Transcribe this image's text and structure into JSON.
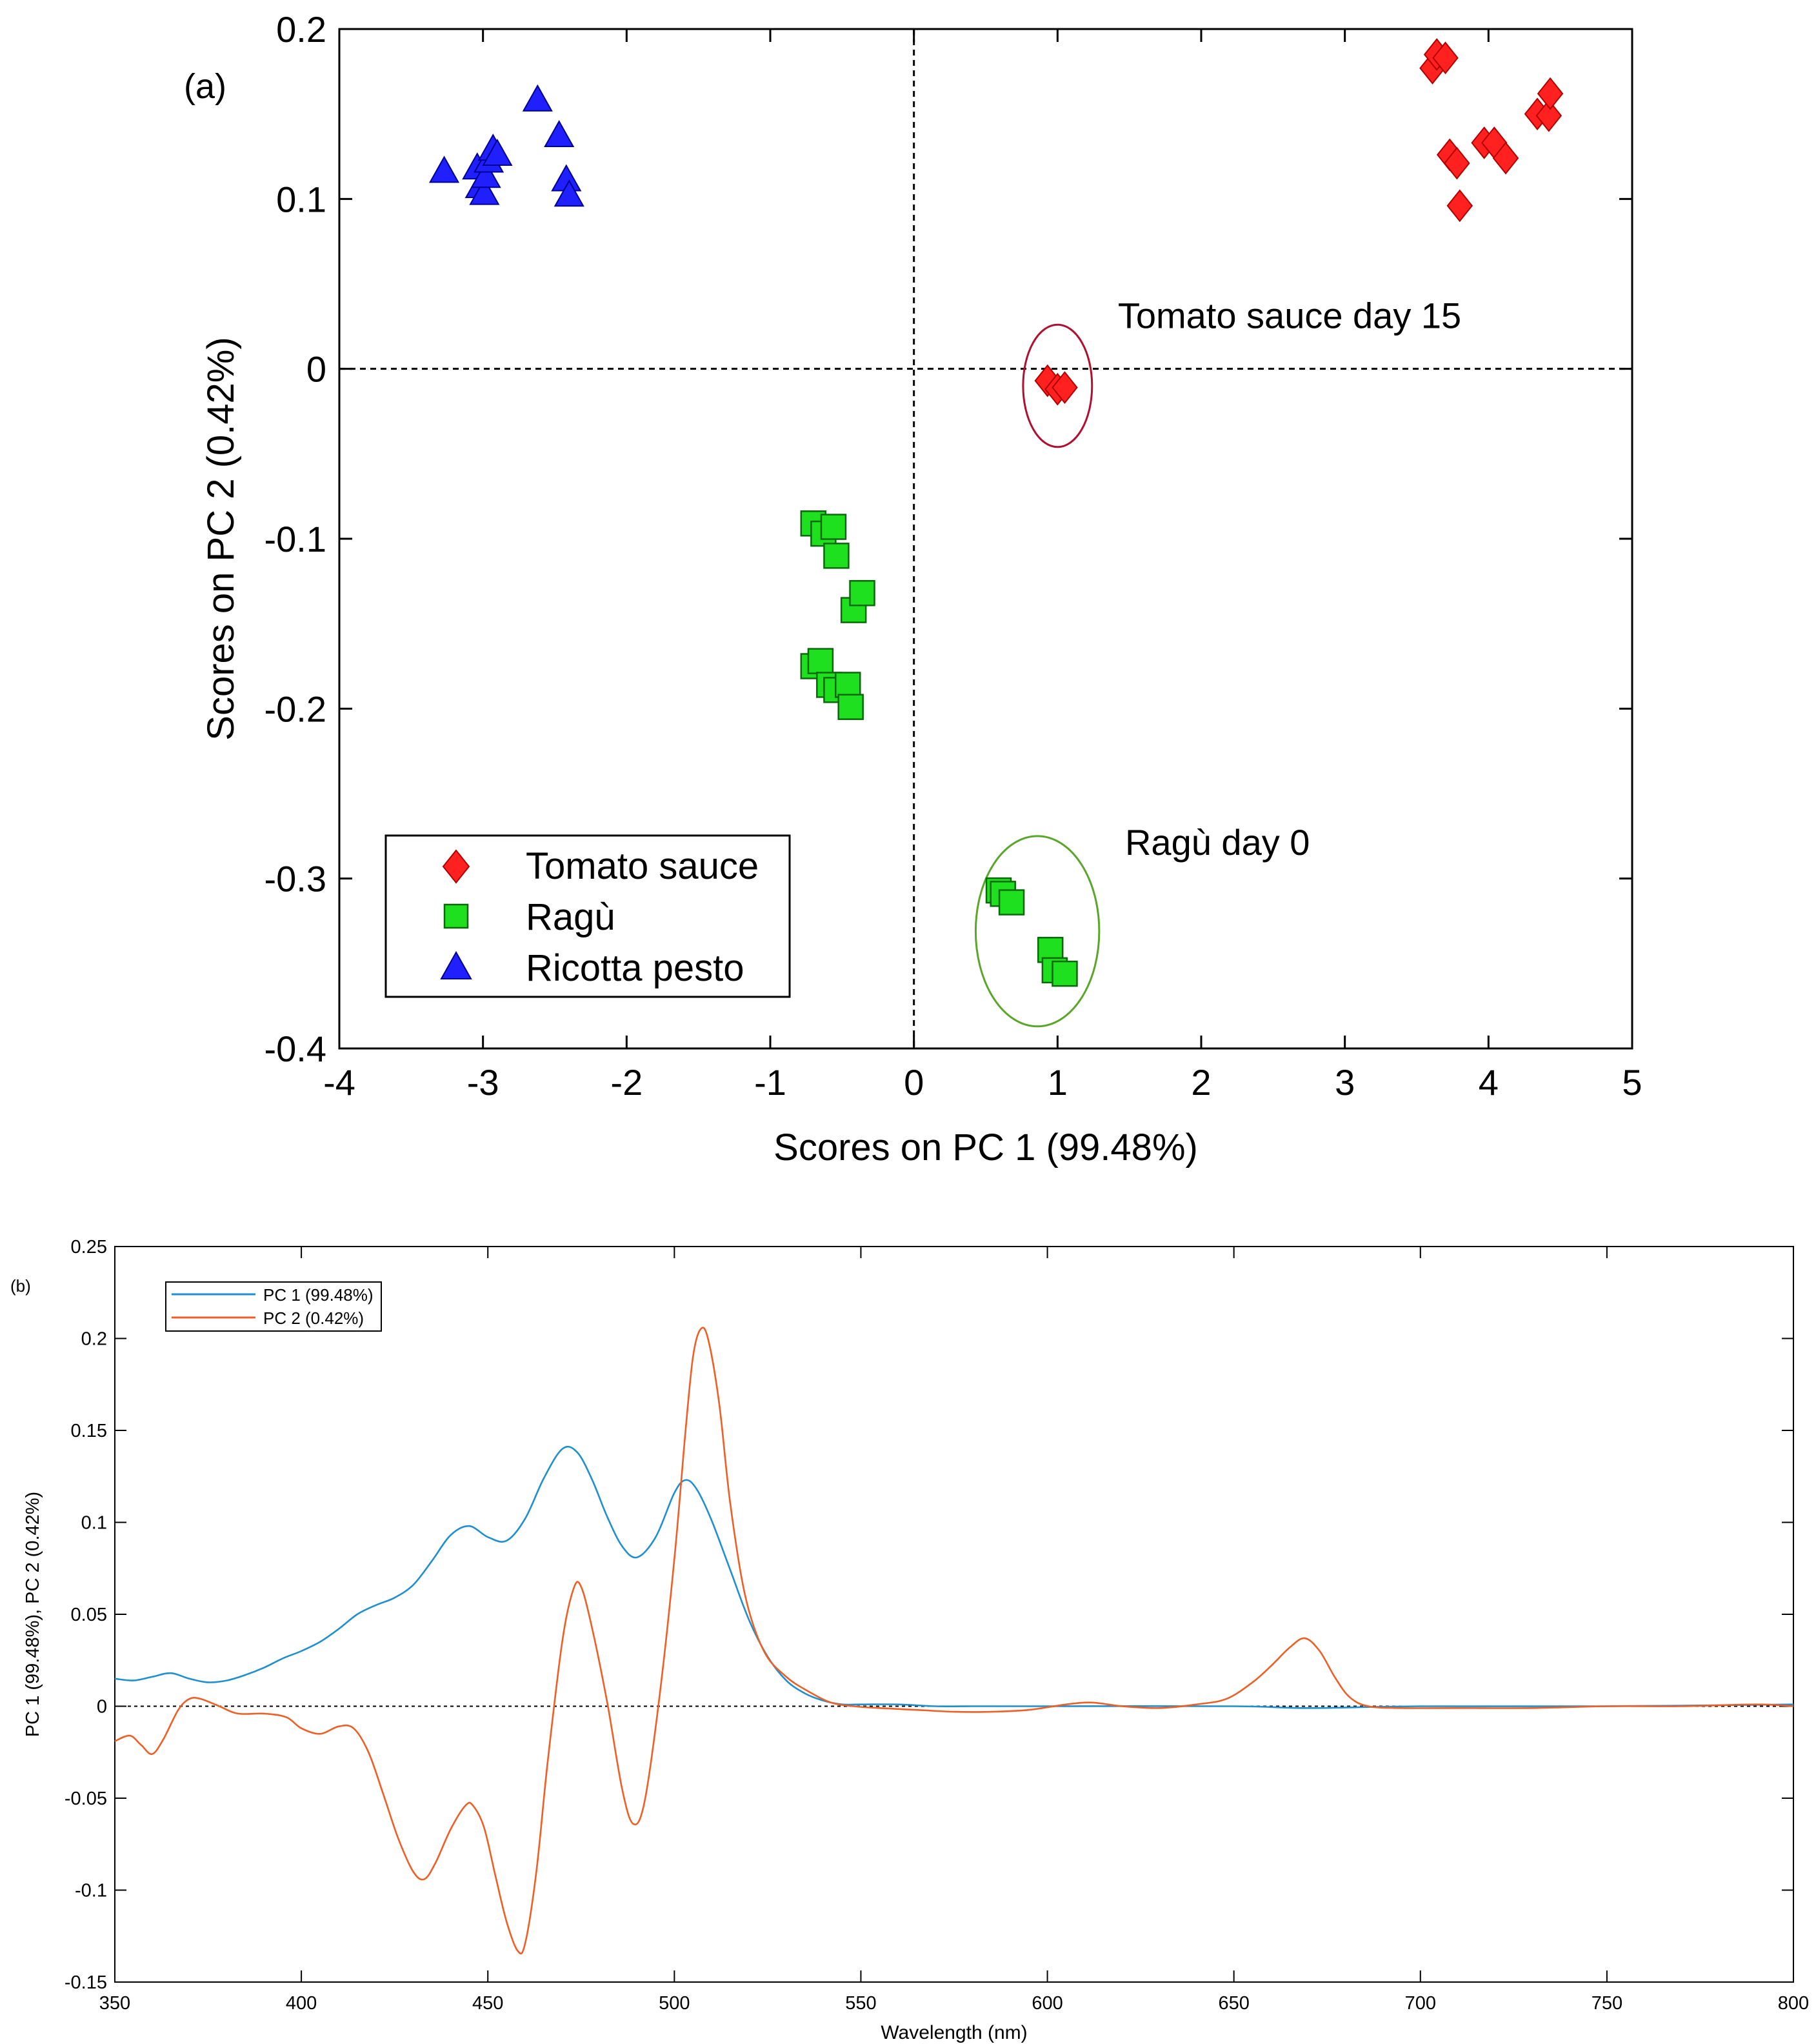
{
  "colors": {
    "tomato": "#ff2020",
    "ragu": "#1ee01e",
    "ricotta": "#2020ff",
    "pc1": "#1f8fd0",
    "pc2": "#ee5f25",
    "ellipse_tomato": "#b01030",
    "ellipse_ragu": "#5aa62a"
  },
  "chart_data": [
    {
      "type": "scatter",
      "panel_label": "(a)",
      "xlabel": "Scores on PC 1 (99.48%)",
      "ylabel": "Scores on PC 2 (0.42%)",
      "xlim": [
        -4,
        5
      ],
      "ylim": [
        -0.4,
        0.2
      ],
      "xticks": [
        -4,
        -3,
        -2,
        -1,
        0,
        1,
        2,
        3,
        4,
        5
      ],
      "yticks": [
        -0.4,
        -0.3,
        -0.2,
        -0.1,
        0,
        0.1,
        0.2
      ],
      "xtick_labels": [
        "-4",
        "-3",
        "-2",
        "-1",
        "0",
        "1",
        "2",
        "3",
        "4",
        "5"
      ],
      "ytick_labels": [
        "-0.4",
        "-0.3",
        "-0.2",
        "-0.1",
        "0",
        "0.1",
        "0.2"
      ],
      "reference_lines": {
        "x": 0,
        "y": 0,
        "style": "dashed"
      },
      "legend": {
        "placement": "bottom-left",
        "entries": [
          "Tomato sauce",
          "Ragù",
          "Ricotta pesto"
        ]
      },
      "series": [
        {
          "name": "Tomato sauce",
          "marker": "diamond",
          "color": "#ff2020",
          "points": [
            [
              3.61,
              0.177
            ],
            [
              3.64,
              0.185
            ],
            [
              3.7,
              0.183
            ],
            [
              3.73,
              0.126
            ],
            [
              3.78,
              0.121
            ],
            [
              3.8,
              0.096
            ],
            [
              3.97,
              0.133
            ],
            [
              4.04,
              0.133
            ],
            [
              4.12,
              0.124
            ],
            [
              4.34,
              0.15
            ],
            [
              4.42,
              0.149
            ],
            [
              4.43,
              0.162
            ],
            [
              0.93,
              -0.007
            ],
            [
              1.0,
              -0.012
            ],
            [
              1.05,
              -0.011
            ]
          ]
        },
        {
          "name": "Ragù",
          "marker": "square",
          "color": "#1ee01e",
          "points": [
            [
              -0.7,
              -0.091
            ],
            [
              -0.63,
              -0.097
            ],
            [
              -0.56,
              -0.093
            ],
            [
              -0.54,
              -0.11
            ],
            [
              -0.42,
              -0.142
            ],
            [
              -0.36,
              -0.132
            ],
            [
              -0.7,
              -0.175
            ],
            [
              -0.65,
              -0.172
            ],
            [
              -0.59,
              -0.186
            ],
            [
              -0.54,
              -0.189
            ],
            [
              -0.46,
              -0.186
            ],
            [
              -0.44,
              -0.199
            ],
            [
              0.59,
              -0.307
            ],
            [
              0.62,
              -0.309
            ],
            [
              0.68,
              -0.314
            ],
            [
              0.95,
              -0.342
            ],
            [
              0.98,
              -0.354
            ],
            [
              1.05,
              -0.356
            ]
          ]
        },
        {
          "name": "Ricotta pesto",
          "marker": "triangle",
          "color": "#2020ff",
          "points": [
            [
              -3.27,
              0.116
            ],
            [
              -3.04,
              0.118
            ],
            [
              -3.02,
              0.107
            ],
            [
              -2.99,
              0.103
            ],
            [
              -2.98,
              0.113
            ],
            [
              -2.96,
              0.122
            ],
            [
              -2.93,
              0.129
            ],
            [
              -2.9,
              0.126
            ],
            [
              -2.62,
              0.158
            ],
            [
              -2.47,
              0.137
            ],
            [
              -2.42,
              0.111
            ],
            [
              -2.4,
              0.102
            ]
          ]
        }
      ],
      "annotations": [
        {
          "text": "Tomato sauce day 15",
          "x": 1.42,
          "y": 0.024
        },
        {
          "text": "Ragù day 0",
          "x": 1.47,
          "y": -0.286
        }
      ],
      "ellipses": [
        {
          "center": [
            1.0,
            -0.01
          ],
          "radii": [
            0.24,
            0.036
          ],
          "color": "#b01030"
        },
        {
          "center": [
            0.86,
            -0.331
          ],
          "radii": [
            0.43,
            0.056
          ],
          "color": "#5aa62a"
        }
      ]
    },
    {
      "type": "line",
      "panel_label": "(b)",
      "xlabel": "Wavelength (nm)",
      "ylabel": "PC 1 (99.48%), PC 2 (0.42%)",
      "xlim": [
        350,
        800
      ],
      "ylim": [
        -0.15,
        0.25
      ],
      "xticks": [
        350,
        400,
        450,
        500,
        550,
        600,
        650,
        700,
        750,
        800
      ],
      "yticks": [
        -0.15,
        -0.1,
        -0.05,
        0,
        0.05,
        0.1,
        0.15,
        0.2,
        0.25
      ],
      "xtick_labels": [
        "350",
        "400",
        "450",
        "500",
        "550",
        "600",
        "650",
        "700",
        "750",
        "800"
      ],
      "ytick_labels": [
        "-0.15",
        "-0.1",
        "-0.05",
        "0",
        "0.05",
        "0.1",
        "0.15",
        "0.2",
        "0.25"
      ],
      "reference_lines": {
        "y": 0,
        "style": "dotted"
      },
      "legend": {
        "placement": "top-left",
        "entries": [
          "PC 1 (99.48%)",
          "PC 2 (0.42%)"
        ]
      },
      "series": [
        {
          "name": "PC 1 (99.48%)",
          "color": "#1f8fd0",
          "points": [
            [
              350,
              0.015
            ],
            [
              355,
              0.014
            ],
            [
              360,
              0.016
            ],
            [
              365,
              0.018
            ],
            [
              370,
              0.015
            ],
            [
              375,
              0.013
            ],
            [
              380,
              0.014
            ],
            [
              385,
              0.017
            ],
            [
              390,
              0.021
            ],
            [
              395,
              0.026
            ],
            [
              400,
              0.03
            ],
            [
              405,
              0.035
            ],
            [
              410,
              0.042
            ],
            [
              415,
              0.05
            ],
            [
              420,
              0.055
            ],
            [
              425,
              0.059
            ],
            [
              430,
              0.066
            ],
            [
              435,
              0.079
            ],
            [
              440,
              0.093
            ],
            [
              445,
              0.098
            ],
            [
              450,
              0.092
            ],
            [
              455,
              0.09
            ],
            [
              460,
              0.102
            ],
            [
              465,
              0.124
            ],
            [
              470,
              0.14
            ],
            [
              474,
              0.138
            ],
            [
              478,
              0.123
            ],
            [
              482,
              0.103
            ],
            [
              486,
              0.087
            ],
            [
              490,
              0.081
            ],
            [
              495,
              0.092
            ],
            [
              500,
              0.116
            ],
            [
              503,
              0.123
            ],
            [
              506,
              0.118
            ],
            [
              510,
              0.101
            ],
            [
              515,
              0.074
            ],
            [
              520,
              0.047
            ],
            [
              525,
              0.027
            ],
            [
              530,
              0.014
            ],
            [
              535,
              0.007
            ],
            [
              540,
              0.003
            ],
            [
              545,
              0.001
            ],
            [
              550,
              0.001
            ],
            [
              560,
              0.001
            ],
            [
              570,
              0.0
            ],
            [
              580,
              0.0
            ],
            [
              590,
              0.0
            ],
            [
              600,
              0.0
            ],
            [
              650,
              0.0
            ],
            [
              670,
              -0.001
            ],
            [
              700,
              0.0
            ],
            [
              750,
              0.0
            ],
            [
              800,
              0.001
            ]
          ]
        },
        {
          "name": "PC 2 (0.42%)",
          "color": "#ee5f25",
          "points": [
            [
              350,
              -0.019
            ],
            [
              354,
              -0.016
            ],
            [
              357,
              -0.021
            ],
            [
              360,
              -0.026
            ],
            [
              363,
              -0.018
            ],
            [
              367,
              -0.002
            ],
            [
              370,
              0.004
            ],
            [
              373,
              0.004
            ],
            [
              378,
              0.0
            ],
            [
              383,
              -0.004
            ],
            [
              390,
              -0.004
            ],
            [
              396,
              -0.006
            ],
            [
              400,
              -0.012
            ],
            [
              405,
              -0.015
            ],
            [
              410,
              -0.011
            ],
            [
              414,
              -0.012
            ],
            [
              418,
              -0.025
            ],
            [
              422,
              -0.048
            ],
            [
              426,
              -0.072
            ],
            [
              430,
              -0.09
            ],
            [
              433,
              -0.094
            ],
            [
              436,
              -0.085
            ],
            [
              440,
              -0.067
            ],
            [
              444,
              -0.054
            ],
            [
              446,
              -0.054
            ],
            [
              449,
              -0.066
            ],
            [
              452,
              -0.092
            ],
            [
              455,
              -0.117
            ],
            [
              458,
              -0.133
            ],
            [
              460,
              -0.129
            ],
            [
              463,
              -0.09
            ],
            [
              466,
              -0.031
            ],
            [
              470,
              0.036
            ],
            [
              473,
              0.064
            ],
            [
              475,
              0.065
            ],
            [
              478,
              0.042
            ],
            [
              482,
              0.002
            ],
            [
              486,
              -0.045
            ],
            [
              489,
              -0.064
            ],
            [
              492,
              -0.052
            ],
            [
              496,
              0.005
            ],
            [
              500,
              0.08
            ],
            [
              503,
              0.15
            ],
            [
              505,
              0.19
            ],
            [
              507,
              0.205
            ],
            [
              509,
              0.2
            ],
            [
              512,
              0.165
            ],
            [
              515,
              0.11
            ],
            [
              519,
              0.06
            ],
            [
              524,
              0.03
            ],
            [
              530,
              0.016
            ],
            [
              536,
              0.008
            ],
            [
              542,
              0.002
            ],
            [
              548,
              0.0
            ],
            [
              555,
              -0.001
            ],
            [
              565,
              -0.002
            ],
            [
              575,
              -0.003
            ],
            [
              585,
              -0.003
            ],
            [
              595,
              -0.002
            ],
            [
              605,
              0.001
            ],
            [
              612,
              0.002
            ],
            [
              620,
              0.0
            ],
            [
              630,
              -0.001
            ],
            [
              640,
              0.001
            ],
            [
              648,
              0.004
            ],
            [
              655,
              0.013
            ],
            [
              660,
              0.022
            ],
            [
              665,
              0.032
            ],
            [
              669,
              0.037
            ],
            [
              673,
              0.03
            ],
            [
              677,
              0.016
            ],
            [
              681,
              0.005
            ],
            [
              686,
              0.0
            ],
            [
              695,
              -0.001
            ],
            [
              710,
              -0.001
            ],
            [
              730,
              -0.001
            ],
            [
              750,
              0.0
            ],
            [
              770,
              0.0
            ],
            [
              790,
              0.001
            ],
            [
              800,
              0.0
            ]
          ]
        }
      ]
    }
  ]
}
